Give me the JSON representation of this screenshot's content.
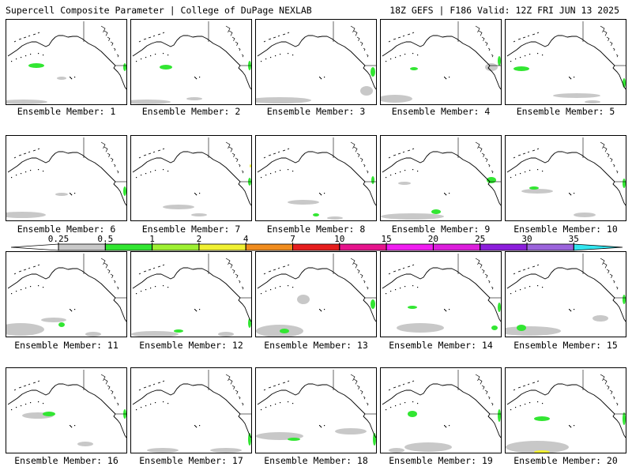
{
  "header": {
    "left": "Supercell Composite Parameter | College of DuPage NEXLAB",
    "right": "18Z GEFS | F186 Valid: 12Z FRI JUN 13 2025"
  },
  "member_label_prefix": "Ensemble Member: ",
  "members": [
    {
      "number": "1",
      "label": "Ensemble Member: 1"
    },
    {
      "number": "2",
      "label": "Ensemble Member: 2"
    },
    {
      "number": "3",
      "label": "Ensemble Member: 3"
    },
    {
      "number": "4",
      "label": "Ensemble Member: 4"
    },
    {
      "number": "5",
      "label": "Ensemble Member: 5"
    },
    {
      "number": "6",
      "label": "Ensemble Member: 6"
    },
    {
      "number": "7",
      "label": "Ensemble Member: 7"
    },
    {
      "number": "8",
      "label": "Ensemble Member: 8"
    },
    {
      "number": "9",
      "label": "Ensemble Member: 9"
    },
    {
      "number": "10",
      "label": "Ensemble Member: 10"
    },
    {
      "number": "11",
      "label": "Ensemble Member: 11"
    },
    {
      "number": "12",
      "label": "Ensemble Member: 12"
    },
    {
      "number": "13",
      "label": "Ensemble Member: 13"
    },
    {
      "number": "14",
      "label": "Ensemble Member: 14"
    },
    {
      "number": "15",
      "label": "Ensemble Member: 15"
    },
    {
      "number": "16",
      "label": "Ensemble Member: 16"
    },
    {
      "number": "17",
      "label": "Ensemble Member: 17"
    },
    {
      "number": "18",
      "label": "Ensemble Member: 18"
    },
    {
      "number": "19",
      "label": "Ensemble Member: 19"
    },
    {
      "number": "20",
      "label": "Ensemble Member: 20"
    }
  ],
  "colorbar": {
    "ticks": [
      "0.25",
      "0.5",
      "1",
      "2",
      "4",
      "7",
      "10",
      "15",
      "20",
      "25",
      "30",
      "35"
    ],
    "colors": [
      "#c8c8c8",
      "#32e632",
      "#9ef032",
      "#f0f032",
      "#f08c1e",
      "#e61e1e",
      "#e6148c",
      "#f01ef0",
      "#dc1edc",
      "#8c1edc",
      "#9b64dc",
      "#32e6f0"
    ],
    "lower_cap_color": "#ffffff",
    "upper_cap_color": "#32e6f0"
  },
  "colors": {
    "light_scp": "#c8c8c8",
    "green_scp": "#32e632",
    "lime_scp": "#9ef032",
    "yellow_scp": "#f0f032",
    "coast": "#000000",
    "background": "#ffffff"
  }
}
